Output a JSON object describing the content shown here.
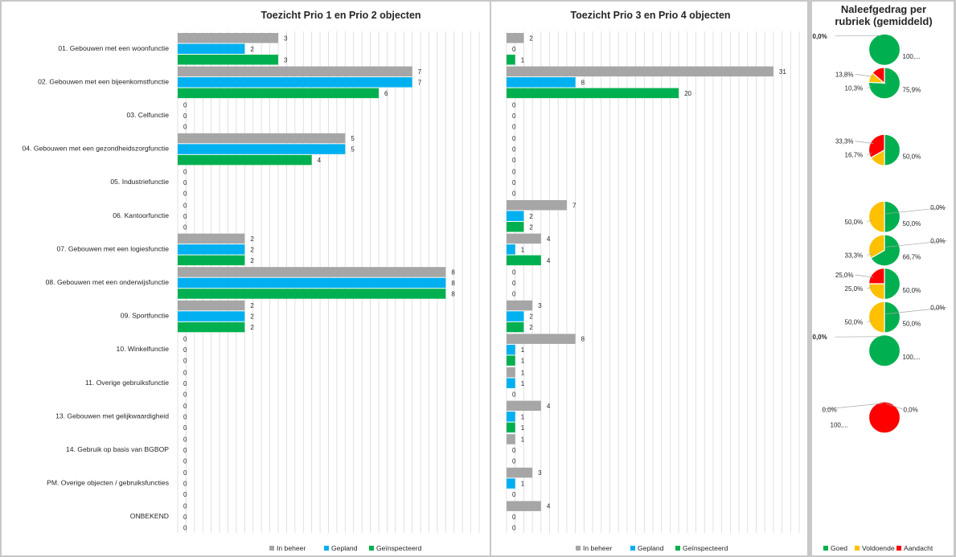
{
  "colors": {
    "background": "#c8c8c8",
    "panel": "#ffffff",
    "grid": "#d9d9d9",
    "in_beheer": "#a6a6a6",
    "gepland": "#00b0f0",
    "geinspecteerd": "#00b050",
    "goed": "#00b050",
    "voldoende": "#ffc000",
    "aandacht": "#ff0000"
  },
  "chart_data": [
    {
      "type": "bar",
      "orientation": "horizontal",
      "title": "Toezicht Prio 1 en Prio 2 objecten",
      "xlim": [
        0,
        9
      ],
      "grid": true,
      "legend_position": "bottom",
      "categories": [
        "01. Gebouwen met een woonfunctie",
        "02. Gebouwen met een bijeenkomstfunctie",
        "03. Celfunctie",
        "04. Gebouwen met een gezondheidszorgfunctie",
        "05. Industriefunctie",
        "06. Kantoorfunctie",
        "07. Gebouwen met een logiesfunctie",
        "08. Gebouwen met een onderwijsfunctie",
        "09. Sportfunctie",
        "10. Winkelfunctie",
        "11. Overige gebruiksfunctie",
        "13. Gebouwen met gelijkwaardigheid",
        "14. Gebruik op basis van BGBOP",
        "PM. Overige objecten / gebruiksfuncties",
        "ONBEKEND"
      ],
      "series": [
        {
          "name": "In beheer",
          "values": [
            3,
            7,
            0,
            5,
            0,
            0,
            2,
            8,
            2,
            0,
            0,
            0,
            0,
            0,
            0
          ]
        },
        {
          "name": "Gepland",
          "values": [
            2,
            7,
            0,
            5,
            0,
            0,
            2,
            8,
            2,
            0,
            0,
            0,
            0,
            0,
            0
          ]
        },
        {
          "name": "Geïnspecteerd",
          "values": [
            3,
            6,
            0,
            4,
            0,
            0,
            2,
            8,
            2,
            0,
            0,
            0,
            0,
            0,
            0
          ]
        }
      ]
    },
    {
      "type": "bar",
      "orientation": "horizontal",
      "title": "Toezicht Prio 3 en Prio 4 objecten",
      "xlim": [
        0,
        34
      ],
      "grid": true,
      "legend_position": "bottom",
      "categories": [
        "01. Gebouwen met een woonfunctie",
        "02. Gebouwen met een bijeenkomstfunctie",
        "03. Celfunctie",
        "04. Gebouwen met een gezondheidszorgfunctie",
        "05. Industriefunctie",
        "06. Kantoorfunctie",
        "07. Gebouwen met een logiesfunctie",
        "08. Gebouwen met een onderwijsfunctie",
        "09. Sportfunctie",
        "10. Winkelfunctie",
        "11. Overige gebruiksfunctie",
        "13. Gebouwen met gelijkwaardigheid",
        "14. Gebruik op basis van BGBOP",
        "PM. Overige objecten / gebruiksfuncties",
        "ONBEKEND"
      ],
      "series": [
        {
          "name": "In beheer",
          "values": [
            2,
            31,
            0,
            0,
            0,
            7,
            4,
            0,
            3,
            8,
            1,
            4,
            1,
            3,
            4
          ]
        },
        {
          "name": "Gepland",
          "values": [
            0,
            8,
            0,
            0,
            0,
            2,
            1,
            0,
            2,
            1,
            1,
            1,
            null,
            1,
            null
          ]
        },
        {
          "name": "Geïnspecteerd",
          "values": [
            1,
            20,
            0,
            0,
            0,
            2,
            4,
            0,
            2,
            1,
            0,
            1,
            0,
            0,
            0
          ]
        }
      ],
      "value_labels_shown": [
        [
          "2",
          "31",
          "0",
          "0",
          "0",
          "7",
          "4",
          "0",
          "3",
          "8",
          "1",
          "4",
          "1",
          "3",
          "4"
        ],
        [
          "0",
          "8",
          "0",
          "0",
          "0",
          "2",
          "1",
          "0",
          "2",
          "1",
          "1",
          "1",
          "0",
          "1",
          "0"
        ],
        [
          "1",
          "20",
          "0",
          "0",
          "0",
          "2",
          "4",
          "0",
          "2",
          "1",
          "0",
          "1",
          "0",
          "0",
          "0"
        ]
      ]
    },
    {
      "type": "pie",
      "title": "Naleefgedrag per rubriek (gemiddeld)",
      "legend_position": "bottom",
      "series_names": [
        "Goed",
        "Voldoende",
        "Aandacht"
      ],
      "pies": [
        {
          "row": 0,
          "goed": 100.0,
          "voldoende": 0.0,
          "aandacht": 0.0,
          "labels": [
            {
              "text": "0,0%",
              "bold": true,
              "side": "left"
            },
            {
              "text": "100,...",
              "bold": false,
              "side": "right"
            }
          ]
        },
        {
          "row": 1,
          "goed": 75.9,
          "voldoende": 10.3,
          "aandacht": 13.8,
          "labels": [
            {
              "text": "13,8%",
              "side": "left-top"
            },
            {
              "text": "10,3%",
              "side": "left"
            },
            {
              "text": "75,9%",
              "side": "right"
            }
          ]
        },
        {
          "row": 3,
          "goed": 50.0,
          "voldoende": 16.7,
          "aandacht": 33.3,
          "labels": [
            {
              "text": "33,3%",
              "side": "left-top"
            },
            {
              "text": "16,7%",
              "side": "left"
            },
            {
              "text": "50,0%",
              "side": "right"
            }
          ]
        },
        {
          "row": 5,
          "goed": 50.0,
          "voldoende": 50.0,
          "aandacht": 0.0,
          "labels": [
            {
              "text": "0,0%",
              "side": "right-top"
            },
            {
              "text": "50,0%",
              "side": "left"
            },
            {
              "text": "50,0%",
              "side": "right"
            }
          ]
        },
        {
          "row": 6,
          "goed": 66.7,
          "voldoende": 33.3,
          "aandacht": 0.0,
          "labels": [
            {
              "text": "33,3%",
              "side": "left"
            },
            {
              "text": "0,0%",
              "side": "right-top"
            },
            {
              "text": "66,7%",
              "side": "right"
            }
          ]
        },
        {
          "row": 7,
          "goed": 50.0,
          "voldoende": 25.0,
          "aandacht": 25.0,
          "labels": [
            {
              "text": "25,0%",
              "side": "left-top"
            },
            {
              "text": "25,0%",
              "side": "left"
            },
            {
              "text": "50,0%",
              "side": "right"
            }
          ]
        },
        {
          "row": 8,
          "goed": 50.0,
          "voldoende": 50.0,
          "aandacht": 0.0,
          "labels": [
            {
              "text": "0,0%",
              "side": "right-top"
            },
            {
              "text": "50,0%",
              "side": "left"
            },
            {
              "text": "50,0%",
              "side": "right"
            }
          ]
        },
        {
          "row": 9,
          "goed": 100.0,
          "voldoende": 0.0,
          "aandacht": 0.0,
          "labels": [
            {
              "text": "0,0%",
              "bold": true,
              "side": "left"
            },
            {
              "text": "100,...",
              "bold": false,
              "side": "right"
            }
          ]
        },
        {
          "row": 11,
          "goed": 0.0,
          "voldoende": 0.0,
          "aandacht": 100.0,
          "labels": [
            {
              "text": "0,0%",
              "side": "left-top"
            },
            {
              "text": "0,0%",
              "side": "right-top"
            },
            {
              "text": "100,...",
              "side": "left"
            }
          ]
        }
      ]
    }
  ]
}
